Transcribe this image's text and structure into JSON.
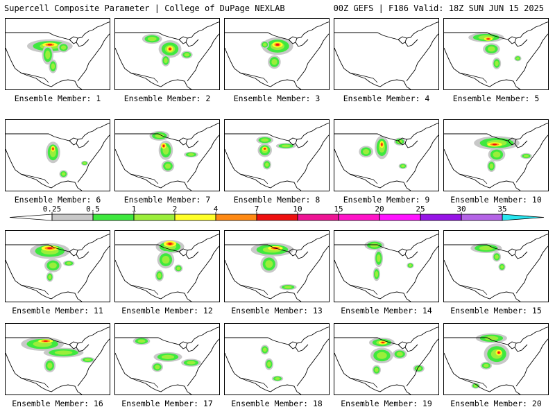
{
  "header": {
    "left_title": "Supercell Composite Parameter | College of DuPage NEXLAB",
    "right_title": "00Z GEFS | F186 Valid: 18Z SUN JUN 15 2025"
  },
  "panels": [
    {
      "label": "Ensemble Member: 1",
      "blobs": [
        [
          0.42,
          0.38,
          0.32,
          0.14
        ],
        [
          0.4,
          0.5,
          0.08,
          0.2
        ],
        [
          0.45,
          0.66,
          0.06,
          0.14
        ],
        [
          0.55,
          0.4,
          0.08,
          0.1
        ]
      ],
      "cores": [
        [
          0.42,
          0.36,
          0.14,
          0.06
        ]
      ]
    },
    {
      "label": "Ensemble Member: 2",
      "blobs": [
        [
          0.35,
          0.28,
          0.14,
          0.1
        ],
        [
          0.52,
          0.42,
          0.16,
          0.18
        ],
        [
          0.48,
          0.58,
          0.06,
          0.12
        ],
        [
          0.68,
          0.5,
          0.08,
          0.08
        ]
      ],
      "cores": [
        [
          0.52,
          0.42,
          0.06,
          0.08
        ]
      ]
    },
    {
      "label": "Ensemble Member: 3",
      "blobs": [
        [
          0.5,
          0.38,
          0.22,
          0.18
        ],
        [
          0.47,
          0.6,
          0.09,
          0.14
        ],
        [
          0.38,
          0.36,
          0.06,
          0.08
        ]
      ],
      "cores": [
        [
          0.5,
          0.36,
          0.1,
          0.08
        ]
      ]
    },
    {
      "label": "Ensemble Member: 4",
      "blobs": [],
      "cores": []
    },
    {
      "label": "Ensemble Member: 5",
      "blobs": [
        [
          0.4,
          0.26,
          0.25,
          0.1
        ],
        [
          0.45,
          0.42,
          0.12,
          0.12
        ],
        [
          0.5,
          0.62,
          0.06,
          0.12
        ],
        [
          0.7,
          0.55,
          0.05,
          0.06
        ]
      ],
      "cores": [
        [
          0.42,
          0.28,
          0.08,
          0.05
        ]
      ]
    },
    {
      "label": "Ensemble Member: 6",
      "blobs": [
        [
          0.45,
          0.45,
          0.1,
          0.22
        ],
        [
          0.55,
          0.75,
          0.06,
          0.08
        ],
        [
          0.75,
          0.6,
          0.05,
          0.05
        ]
      ],
      "cores": [
        [
          0.45,
          0.4,
          0.04,
          0.08
        ]
      ]
    },
    {
      "label": "Ensemble Member: 7",
      "blobs": [
        [
          0.42,
          0.22,
          0.14,
          0.1
        ],
        [
          0.48,
          0.42,
          0.1,
          0.2
        ],
        [
          0.5,
          0.64,
          0.09,
          0.12
        ],
        [
          0.72,
          0.48,
          0.1,
          0.06
        ]
      ],
      "cores": [
        [
          0.46,
          0.36,
          0.05,
          0.08
        ]
      ]
    },
    {
      "label": "Ensemble Member: 8",
      "blobs": [
        [
          0.38,
          0.28,
          0.12,
          0.08
        ],
        [
          0.38,
          0.42,
          0.1,
          0.14
        ],
        [
          0.4,
          0.62,
          0.06,
          0.1
        ],
        [
          0.58,
          0.36,
          0.14,
          0.06
        ]
      ],
      "cores": [
        [
          0.38,
          0.4,
          0.05,
          0.06
        ]
      ]
    },
    {
      "label": "Ensemble Member: 9",
      "blobs": [
        [
          0.45,
          0.38,
          0.1,
          0.24
        ],
        [
          0.62,
          0.3,
          0.08,
          0.08
        ],
        [
          0.3,
          0.44,
          0.1,
          0.12
        ],
        [
          0.65,
          0.64,
          0.06,
          0.06
        ]
      ],
      "cores": [
        [
          0.45,
          0.34,
          0.04,
          0.1
        ]
      ]
    },
    {
      "label": "Ensemble Member: 10",
      "blobs": [
        [
          0.5,
          0.32,
          0.32,
          0.14
        ],
        [
          0.5,
          0.48,
          0.12,
          0.14
        ],
        [
          0.45,
          0.64,
          0.06,
          0.12
        ],
        [
          0.78,
          0.5,
          0.08,
          0.06
        ]
      ],
      "cores": [
        [
          0.48,
          0.34,
          0.14,
          0.06
        ]
      ]
    },
    {
      "label": "Ensemble Member: 11",
      "blobs": [
        [
          0.42,
          0.28,
          0.28,
          0.16
        ],
        [
          0.45,
          0.48,
          0.12,
          0.14
        ],
        [
          0.6,
          0.45,
          0.08,
          0.06
        ],
        [
          0.42,
          0.64,
          0.05,
          0.1
        ]
      ],
      "cores": [
        [
          0.42,
          0.24,
          0.16,
          0.07
        ]
      ]
    },
    {
      "label": "Ensemble Member: 12",
      "blobs": [
        [
          0.52,
          0.22,
          0.2,
          0.14
        ],
        [
          0.48,
          0.4,
          0.12,
          0.18
        ],
        [
          0.42,
          0.62,
          0.06,
          0.12
        ],
        [
          0.6,
          0.52,
          0.06,
          0.08
        ]
      ],
      "cores": [
        [
          0.52,
          0.18,
          0.12,
          0.08
        ]
      ]
    },
    {
      "label": "Ensemble Member: 13",
      "blobs": [
        [
          0.45,
          0.26,
          0.3,
          0.14
        ],
        [
          0.42,
          0.46,
          0.12,
          0.18
        ],
        [
          0.6,
          0.78,
          0.12,
          0.06
        ]
      ],
      "cores": [
        [
          0.48,
          0.24,
          0.14,
          0.06
        ]
      ]
    },
    {
      "label": "Ensemble Member: 14",
      "blobs": [
        [
          0.38,
          0.2,
          0.14,
          0.1
        ],
        [
          0.42,
          0.38,
          0.06,
          0.18
        ],
        [
          0.4,
          0.6,
          0.05,
          0.14
        ],
        [
          0.72,
          0.48,
          0.05,
          0.06
        ]
      ],
      "cores": []
    },
    {
      "label": "Ensemble Member: 15",
      "blobs": [
        [
          0.4,
          0.24,
          0.22,
          0.1
        ],
        [
          0.5,
          0.36,
          0.06,
          0.1
        ],
        [
          0.55,
          0.5,
          0.05,
          0.08
        ]
      ],
      "cores": []
    },
    {
      "label": "Ensemble Member: 16",
      "blobs": [
        [
          0.35,
          0.28,
          0.3,
          0.14
        ],
        [
          0.55,
          0.4,
          0.28,
          0.1
        ],
        [
          0.42,
          0.58,
          0.08,
          0.14
        ],
        [
          0.78,
          0.5,
          0.1,
          0.06
        ]
      ],
      "cores": [
        [
          0.38,
          0.24,
          0.14,
          0.05
        ]
      ]
    },
    {
      "label": "Ensemble Member: 17",
      "blobs": [
        [
          0.25,
          0.24,
          0.12,
          0.08
        ],
        [
          0.5,
          0.46,
          0.2,
          0.1
        ],
        [
          0.72,
          0.54,
          0.14,
          0.08
        ],
        [
          0.4,
          0.6,
          0.08,
          0.1
        ]
      ],
      "cores": []
    },
    {
      "label": "Ensemble Member: 18",
      "blobs": [
        [
          0.38,
          0.36,
          0.06,
          0.1
        ],
        [
          0.42,
          0.56,
          0.06,
          0.12
        ],
        [
          0.5,
          0.76,
          0.08,
          0.06
        ]
      ],
      "cores": []
    },
    {
      "label": "Ensemble Member: 19",
      "blobs": [
        [
          0.45,
          0.26,
          0.18,
          0.1
        ],
        [
          0.45,
          0.44,
          0.16,
          0.16
        ],
        [
          0.62,
          0.42,
          0.1,
          0.1
        ],
        [
          0.8,
          0.62,
          0.08,
          0.08
        ],
        [
          0.4,
          0.64,
          0.06,
          0.1
        ]
      ],
      "cores": [
        [
          0.46,
          0.26,
          0.08,
          0.05
        ]
      ]
    },
    {
      "label": "Ensemble Member: 20",
      "blobs": [
        [
          0.45,
          0.2,
          0.22,
          0.1
        ],
        [
          0.5,
          0.42,
          0.18,
          0.22
        ],
        [
          0.4,
          0.58,
          0.08,
          0.08
        ],
        [
          0.3,
          0.86,
          0.06,
          0.06
        ]
      ],
      "cores": [
        [
          0.52,
          0.4,
          0.06,
          0.08
        ]
      ]
    }
  ],
  "colorbar": {
    "labels": [
      "0.25",
      "0.5",
      "1",
      "2",
      "4",
      "7",
      "10",
      "15",
      "20",
      "25",
      "30",
      "35"
    ],
    "colors": [
      "#c8c8c8",
      "#3fe83f",
      "#9bee3b",
      "#ffff28",
      "#ff8a14",
      "#ee1010",
      "#ee1494",
      "#ff14c8",
      "#ff14ff",
      "#9614e6",
      "#b464e6",
      "#28e6f0"
    ]
  },
  "field_colors": {
    "low": "#c8c8c8",
    "mid": "#3fe83f",
    "mid2": "#9bee3b",
    "high": "#ffff28",
    "core": "#ff8a14",
    "peak": "#ee1010"
  }
}
